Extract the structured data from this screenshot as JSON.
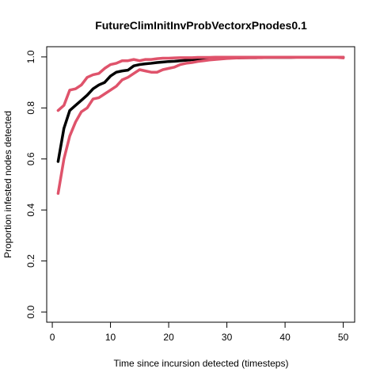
{
  "chart_data": {
    "type": "line",
    "title": "FutureClimInitInvProbVectorxPnodes0.1",
    "xlabel": "Time since incursion detected (timesteps)",
    "ylabel": "Proportion infested nodes detected",
    "xlim": [
      1,
      50
    ],
    "ylim": [
      0,
      1
    ],
    "x_ticks": [
      "0",
      "10",
      "20",
      "30",
      "40",
      "50"
    ],
    "y_ticks": [
      "0.0",
      "0.2",
      "0.4",
      "0.6",
      "0.8",
      "1.0"
    ],
    "grid": false,
    "legend": "none",
    "series": [
      {
        "color": "#000000",
        "x": [
          1,
          2,
          3,
          4,
          5,
          6,
          7,
          8,
          9,
          10,
          11,
          12,
          13,
          14,
          15,
          16,
          17,
          18,
          19,
          20,
          21,
          22,
          23,
          24,
          25,
          26,
          27,
          28,
          29,
          30,
          31,
          32,
          33,
          34,
          35,
          36,
          37,
          38,
          39,
          40,
          41,
          42,
          43,
          44,
          45,
          46,
          47,
          48,
          49,
          50
        ],
        "y": [
          0.59,
          0.72,
          0.79,
          0.81,
          0.83,
          0.85,
          0.875,
          0.89,
          0.9,
          0.925,
          0.94,
          0.945,
          0.948,
          0.965,
          0.97,
          0.973,
          0.975,
          0.978,
          0.98,
          0.982,
          0.983,
          0.985,
          0.987,
          0.989,
          0.99,
          0.991,
          0.992,
          0.993,
          0.994,
          0.995,
          0.996,
          0.996,
          0.997,
          0.997,
          0.997,
          0.998,
          0.998,
          0.998,
          0.998,
          0.998,
          0.998,
          0.999,
          0.999,
          0.999,
          0.999,
          0.999,
          0.999,
          0.999,
          0.999,
          0.999
        ]
      },
      {
        "color": "#DF536B",
        "x": [
          1,
          2,
          3,
          4,
          5,
          6,
          7,
          8,
          9,
          10,
          11,
          12,
          13,
          14,
          15,
          16,
          17,
          18,
          19,
          20,
          21,
          22,
          23,
          24,
          25,
          26,
          27,
          28,
          29,
          30,
          31,
          32,
          33,
          34,
          35,
          36,
          37,
          38,
          39,
          40,
          41,
          42,
          43,
          44,
          45,
          46,
          47,
          48,
          49,
          50
        ],
        "y": [
          0.79,
          0.81,
          0.87,
          0.875,
          0.89,
          0.92,
          0.93,
          0.935,
          0.955,
          0.97,
          0.975,
          0.985,
          0.985,
          0.99,
          0.985,
          0.99,
          0.99,
          0.993,
          0.995,
          0.995,
          0.996,
          0.997,
          0.997,
          0.997,
          0.998,
          0.998,
          0.998,
          0.999,
          0.999,
          0.999,
          0.999,
          0.999,
          0.999,
          0.999,
          0.999,
          0.999,
          0.999,
          0.999,
          0.999,
          0.999,
          0.999,
          0.999,
          0.999,
          0.999,
          0.999,
          0.999,
          0.999,
          0.999,
          0.999,
          0.999
        ]
      },
      {
        "color": "#DF536B",
        "x": [
          1,
          2,
          3,
          4,
          5,
          6,
          7,
          8,
          9,
          10,
          11,
          12,
          13,
          14,
          15,
          16,
          17,
          18,
          19,
          20,
          21,
          22,
          23,
          24,
          25,
          26,
          27,
          28,
          29,
          30,
          31,
          32,
          33,
          34,
          35,
          36,
          37,
          38,
          39,
          40,
          41,
          42,
          43,
          44,
          45,
          46,
          47,
          48,
          49,
          50
        ],
        "y": [
          0.465,
          0.6,
          0.69,
          0.745,
          0.785,
          0.8,
          0.835,
          0.84,
          0.855,
          0.87,
          0.885,
          0.91,
          0.92,
          0.935,
          0.95,
          0.945,
          0.94,
          0.94,
          0.95,
          0.955,
          0.96,
          0.97,
          0.975,
          0.978,
          0.982,
          0.985,
          0.988,
          0.99,
          0.992,
          0.994,
          0.995,
          0.996,
          0.996,
          0.997,
          0.997,
          0.997,
          0.998,
          0.998,
          0.998,
          0.998,
          0.998,
          0.998,
          0.998,
          0.998,
          0.998,
          0.998,
          0.998,
          0.998,
          0.998,
          0.996
        ]
      }
    ]
  }
}
